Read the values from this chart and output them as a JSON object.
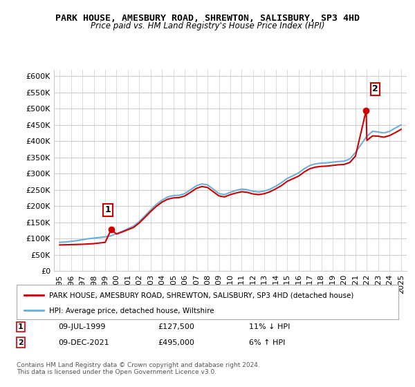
{
  "title": "PARK HOUSE, AMESBURY ROAD, SHREWTON, SALISBURY, SP3 4HD",
  "subtitle": "Price paid vs. HM Land Registry's House Price Index (HPI)",
  "ylabel_ticks": [
    "£0",
    "£50K",
    "£100K",
    "£150K",
    "£200K",
    "£250K",
    "£300K",
    "£350K",
    "£400K",
    "£450K",
    "£500K",
    "£550K",
    "£600K"
  ],
  "ylim": [
    0,
    620000
  ],
  "ytick_vals": [
    0,
    50000,
    100000,
    150000,
    200000,
    250000,
    300000,
    350000,
    400000,
    450000,
    500000,
    550000,
    600000
  ],
  "legend_line1": "PARK HOUSE, AMESBURY ROAD, SHREWTON, SALISBURY, SP3 4HD (detached house)",
  "legend_line2": "HPI: Average price, detached house, Wiltshire",
  "annotation1_label": "1",
  "annotation1_date": "09-JUL-1999",
  "annotation1_price": "£127,500",
  "annotation1_hpi": "11% ↓ HPI",
  "annotation2_label": "2",
  "annotation2_date": "09-DEC-2021",
  "annotation2_price": "£495,000",
  "annotation2_hpi": "6% ↑ HPI",
  "footer": "Contains HM Land Registry data © Crown copyright and database right 2024.\nThis data is licensed under the Open Government Licence v3.0.",
  "hpi_color": "#6baed6",
  "price_color": "#cc0000",
  "marker1_x": 1999.53,
  "marker1_y": 127500,
  "marker2_x": 2021.94,
  "marker2_y": 495000,
  "hpi_x": [
    1995.0,
    1995.5,
    1996.0,
    1996.5,
    1997.0,
    1997.5,
    1998.0,
    1998.5,
    1999.0,
    1999.5,
    2000.0,
    2000.5,
    2001.0,
    2001.5,
    2002.0,
    2002.5,
    2003.0,
    2003.5,
    2004.0,
    2004.5,
    2005.0,
    2005.5,
    2006.0,
    2006.5,
    2007.0,
    2007.5,
    2008.0,
    2008.5,
    2009.0,
    2009.5,
    2010.0,
    2010.5,
    2011.0,
    2011.5,
    2012.0,
    2012.5,
    2013.0,
    2013.5,
    2014.0,
    2014.5,
    2015.0,
    2015.5,
    2016.0,
    2016.5,
    2017.0,
    2017.5,
    2018.0,
    2018.5,
    2019.0,
    2019.5,
    2020.0,
    2020.5,
    2021.0,
    2021.5,
    2022.0,
    2022.5,
    2023.0,
    2023.5,
    2024.0,
    2024.5,
    2025.0
  ],
  "hpi_y": [
    88000,
    89000,
    91000,
    93000,
    96000,
    99000,
    101000,
    103000,
    105000,
    108000,
    115000,
    122000,
    130000,
    138000,
    152000,
    170000,
    188000,
    205000,
    218000,
    228000,
    232000,
    233000,
    238000,
    250000,
    262000,
    268000,
    265000,
    252000,
    238000,
    235000,
    242000,
    248000,
    252000,
    250000,
    245000,
    243000,
    246000,
    252000,
    261000,
    272000,
    285000,
    293000,
    302000,
    315000,
    325000,
    330000,
    332000,
    333000,
    335000,
    337000,
    338000,
    345000,
    365000,
    390000,
    415000,
    430000,
    428000,
    425000,
    430000,
    440000,
    450000
  ],
  "price_x": [
    1995.0,
    1995.5,
    1996.0,
    1996.5,
    1997.0,
    1997.5,
    1998.0,
    1998.5,
    1999.0,
    1999.53,
    2000.0,
    2000.5,
    2001.0,
    2001.5,
    2002.0,
    2002.5,
    2003.0,
    2003.5,
    2004.0,
    2004.5,
    2005.0,
    2005.5,
    2006.0,
    2006.5,
    2007.0,
    2007.5,
    2008.0,
    2008.5,
    2009.0,
    2009.5,
    2010.0,
    2010.5,
    2011.0,
    2011.5,
    2012.0,
    2012.5,
    2013.0,
    2013.5,
    2014.0,
    2014.5,
    2015.0,
    2015.5,
    2016.0,
    2016.5,
    2017.0,
    2017.5,
    2018.0,
    2018.5,
    2019.0,
    2019.5,
    2020.0,
    2020.5,
    2021.0,
    2021.94,
    2022.0,
    2022.5,
    2023.0,
    2023.5,
    2024.0,
    2024.5,
    2025.0
  ],
  "price_y": [
    80000,
    80500,
    81000,
    81500,
    82000,
    83000,
    84000,
    86000,
    88000,
    127500,
    113636,
    120000,
    127000,
    134000,
    148000,
    165000,
    183000,
    199000,
    212000,
    221000,
    225000,
    226000,
    231000,
    242000,
    254000,
    260000,
    257000,
    244000,
    231000,
    228000,
    235000,
    240000,
    244000,
    242000,
    237000,
    235000,
    238000,
    244000,
    253000,
    263000,
    276000,
    284000,
    292000,
    305000,
    315000,
    320000,
    322000,
    323000,
    325000,
    327000,
    328000,
    334000,
    354000,
    495000,
    402000,
    416000,
    415000,
    412000,
    417000,
    426000,
    436000
  ],
  "xlim": [
    1994.5,
    2025.5
  ],
  "xtick_vals": [
    1995,
    1996,
    1997,
    1998,
    1999,
    2000,
    2001,
    2002,
    2003,
    2004,
    2005,
    2006,
    2007,
    2008,
    2009,
    2010,
    2011,
    2012,
    2013,
    2014,
    2015,
    2016,
    2017,
    2018,
    2019,
    2020,
    2021,
    2022,
    2023,
    2024,
    2025
  ],
  "bg_color": "#ffffff",
  "grid_color": "#cccccc"
}
